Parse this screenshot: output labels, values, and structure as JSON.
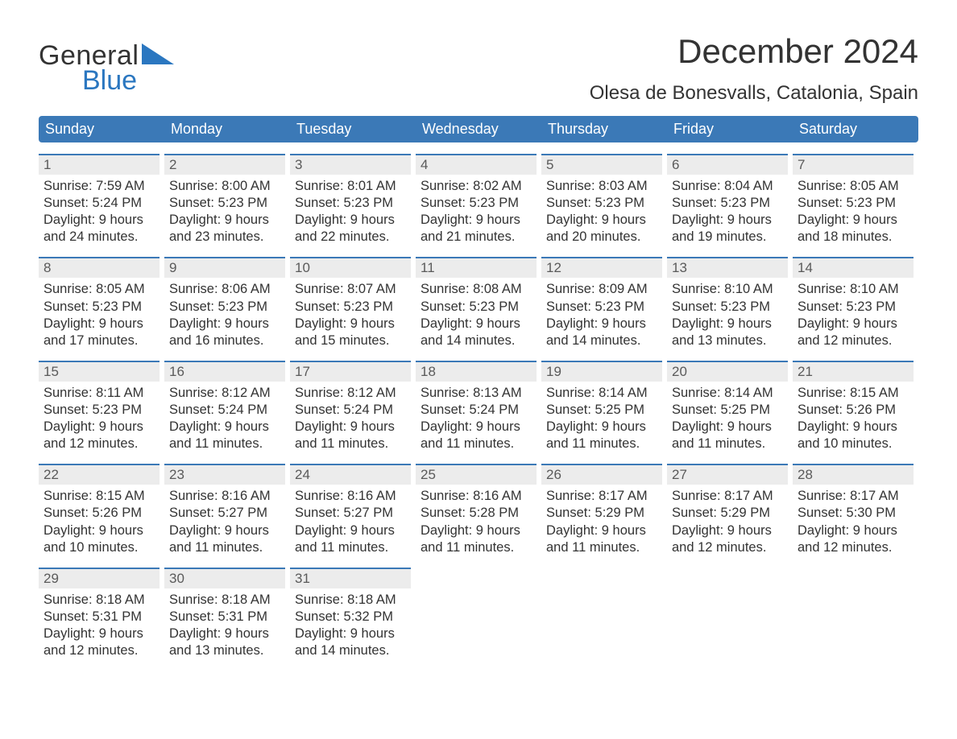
{
  "colors": {
    "header_bg": "#3b79b7",
    "header_text": "#ffffff",
    "day_top_bg": "#ececec",
    "day_top_border": "#3b79b7",
    "text": "#333333",
    "logo_blue": "#2b77c0"
  },
  "logo": {
    "line1": "General",
    "line2": "Blue"
  },
  "title": "December 2024",
  "location": "Olesa de Bonesvalls, Catalonia, Spain",
  "weekdays": [
    "Sunday",
    "Monday",
    "Tuesday",
    "Wednesday",
    "Thursday",
    "Friday",
    "Saturday"
  ],
  "weeks": [
    [
      {
        "n": "1",
        "sunrise": "Sunrise: 7:59 AM",
        "sunset": "Sunset: 5:24 PM",
        "d1": "Daylight: 9 hours",
        "d2": "and 24 minutes."
      },
      {
        "n": "2",
        "sunrise": "Sunrise: 8:00 AM",
        "sunset": "Sunset: 5:23 PM",
        "d1": "Daylight: 9 hours",
        "d2": "and 23 minutes."
      },
      {
        "n": "3",
        "sunrise": "Sunrise: 8:01 AM",
        "sunset": "Sunset: 5:23 PM",
        "d1": "Daylight: 9 hours",
        "d2": "and 22 minutes."
      },
      {
        "n": "4",
        "sunrise": "Sunrise: 8:02 AM",
        "sunset": "Sunset: 5:23 PM",
        "d1": "Daylight: 9 hours",
        "d2": "and 21 minutes."
      },
      {
        "n": "5",
        "sunrise": "Sunrise: 8:03 AM",
        "sunset": "Sunset: 5:23 PM",
        "d1": "Daylight: 9 hours",
        "d2": "and 20 minutes."
      },
      {
        "n": "6",
        "sunrise": "Sunrise: 8:04 AM",
        "sunset": "Sunset: 5:23 PM",
        "d1": "Daylight: 9 hours",
        "d2": "and 19 minutes."
      },
      {
        "n": "7",
        "sunrise": "Sunrise: 8:05 AM",
        "sunset": "Sunset: 5:23 PM",
        "d1": "Daylight: 9 hours",
        "d2": "and 18 minutes."
      }
    ],
    [
      {
        "n": "8",
        "sunrise": "Sunrise: 8:05 AM",
        "sunset": "Sunset: 5:23 PM",
        "d1": "Daylight: 9 hours",
        "d2": "and 17 minutes."
      },
      {
        "n": "9",
        "sunrise": "Sunrise: 8:06 AM",
        "sunset": "Sunset: 5:23 PM",
        "d1": "Daylight: 9 hours",
        "d2": "and 16 minutes."
      },
      {
        "n": "10",
        "sunrise": "Sunrise: 8:07 AM",
        "sunset": "Sunset: 5:23 PM",
        "d1": "Daylight: 9 hours",
        "d2": "and 15 minutes."
      },
      {
        "n": "11",
        "sunrise": "Sunrise: 8:08 AM",
        "sunset": "Sunset: 5:23 PM",
        "d1": "Daylight: 9 hours",
        "d2": "and 14 minutes."
      },
      {
        "n": "12",
        "sunrise": "Sunrise: 8:09 AM",
        "sunset": "Sunset: 5:23 PM",
        "d1": "Daylight: 9 hours",
        "d2": "and 14 minutes."
      },
      {
        "n": "13",
        "sunrise": "Sunrise: 8:10 AM",
        "sunset": "Sunset: 5:23 PM",
        "d1": "Daylight: 9 hours",
        "d2": "and 13 minutes."
      },
      {
        "n": "14",
        "sunrise": "Sunrise: 8:10 AM",
        "sunset": "Sunset: 5:23 PM",
        "d1": "Daylight: 9 hours",
        "d2": "and 12 minutes."
      }
    ],
    [
      {
        "n": "15",
        "sunrise": "Sunrise: 8:11 AM",
        "sunset": "Sunset: 5:23 PM",
        "d1": "Daylight: 9 hours",
        "d2": "and 12 minutes."
      },
      {
        "n": "16",
        "sunrise": "Sunrise: 8:12 AM",
        "sunset": "Sunset: 5:24 PM",
        "d1": "Daylight: 9 hours",
        "d2": "and 11 minutes."
      },
      {
        "n": "17",
        "sunrise": "Sunrise: 8:12 AM",
        "sunset": "Sunset: 5:24 PM",
        "d1": "Daylight: 9 hours",
        "d2": "and 11 minutes."
      },
      {
        "n": "18",
        "sunrise": "Sunrise: 8:13 AM",
        "sunset": "Sunset: 5:24 PM",
        "d1": "Daylight: 9 hours",
        "d2": "and 11 minutes."
      },
      {
        "n": "19",
        "sunrise": "Sunrise: 8:14 AM",
        "sunset": "Sunset: 5:25 PM",
        "d1": "Daylight: 9 hours",
        "d2": "and 11 minutes."
      },
      {
        "n": "20",
        "sunrise": "Sunrise: 8:14 AM",
        "sunset": "Sunset: 5:25 PM",
        "d1": "Daylight: 9 hours",
        "d2": "and 11 minutes."
      },
      {
        "n": "21",
        "sunrise": "Sunrise: 8:15 AM",
        "sunset": "Sunset: 5:26 PM",
        "d1": "Daylight: 9 hours",
        "d2": "and 10 minutes."
      }
    ],
    [
      {
        "n": "22",
        "sunrise": "Sunrise: 8:15 AM",
        "sunset": "Sunset: 5:26 PM",
        "d1": "Daylight: 9 hours",
        "d2": "and 10 minutes."
      },
      {
        "n": "23",
        "sunrise": "Sunrise: 8:16 AM",
        "sunset": "Sunset: 5:27 PM",
        "d1": "Daylight: 9 hours",
        "d2": "and 11 minutes."
      },
      {
        "n": "24",
        "sunrise": "Sunrise: 8:16 AM",
        "sunset": "Sunset: 5:27 PM",
        "d1": "Daylight: 9 hours",
        "d2": "and 11 minutes."
      },
      {
        "n": "25",
        "sunrise": "Sunrise: 8:16 AM",
        "sunset": "Sunset: 5:28 PM",
        "d1": "Daylight: 9 hours",
        "d2": "and 11 minutes."
      },
      {
        "n": "26",
        "sunrise": "Sunrise: 8:17 AM",
        "sunset": "Sunset: 5:29 PM",
        "d1": "Daylight: 9 hours",
        "d2": "and 11 minutes."
      },
      {
        "n": "27",
        "sunrise": "Sunrise: 8:17 AM",
        "sunset": "Sunset: 5:29 PM",
        "d1": "Daylight: 9 hours",
        "d2": "and 12 minutes."
      },
      {
        "n": "28",
        "sunrise": "Sunrise: 8:17 AM",
        "sunset": "Sunset: 5:30 PM",
        "d1": "Daylight: 9 hours",
        "d2": "and 12 minutes."
      }
    ],
    [
      {
        "n": "29",
        "sunrise": "Sunrise: 8:18 AM",
        "sunset": "Sunset: 5:31 PM",
        "d1": "Daylight: 9 hours",
        "d2": "and 12 minutes."
      },
      {
        "n": "30",
        "sunrise": "Sunrise: 8:18 AM",
        "sunset": "Sunset: 5:31 PM",
        "d1": "Daylight: 9 hours",
        "d2": "and 13 minutes."
      },
      {
        "n": "31",
        "sunrise": "Sunrise: 8:18 AM",
        "sunset": "Sunset: 5:32 PM",
        "d1": "Daylight: 9 hours",
        "d2": "and 14 minutes."
      },
      null,
      null,
      null,
      null
    ]
  ]
}
